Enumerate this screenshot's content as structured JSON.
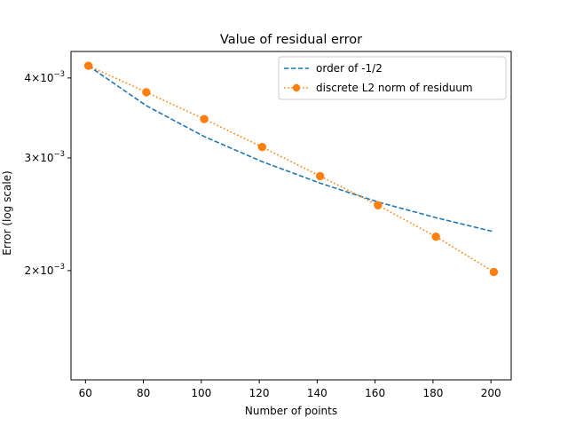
{
  "chart_data": {
    "type": "line",
    "title": "Value of residual error",
    "xlabel": "Number of points",
    "ylabel": "Error (log scale)",
    "x": [
      61,
      81,
      101,
      121,
      141,
      161,
      181,
      201
    ],
    "xlim": [
      55,
      207
    ],
    "ylim": [
      0.00135,
      0.0044
    ],
    "yscale": "log",
    "xticks": [
      60,
      80,
      100,
      120,
      140,
      160,
      180,
      200
    ],
    "xtick_labels": [
      "60",
      "80",
      "100",
      "120",
      "140",
      "160",
      "180",
      "200"
    ],
    "yticks": [
      {
        "value": 0.004,
        "base": "4",
        "exp": "−3"
      },
      {
        "value": 0.003,
        "base": "3",
        "exp": "−3"
      },
      {
        "value": 0.002,
        "base": "2",
        "exp": "−3"
      }
    ],
    "legend_position": "upper right",
    "series": [
      {
        "name": "order of -1/2",
        "color": "#1f77b4",
        "style": "dashed",
        "marker": "none",
        "values": [
          0.00418,
          0.00362,
          0.00324,
          0.00296,
          0.00274,
          0.00256,
          0.00242,
          0.0023
        ]
      },
      {
        "name": "discrete L2 norm of residuum",
        "color": "#ff7f0e",
        "style": "dotted",
        "marker": "circle",
        "values": [
          0.00418,
          0.0038,
          0.00345,
          0.00312,
          0.00281,
          0.00253,
          0.00226,
          0.00199
        ]
      }
    ]
  }
}
